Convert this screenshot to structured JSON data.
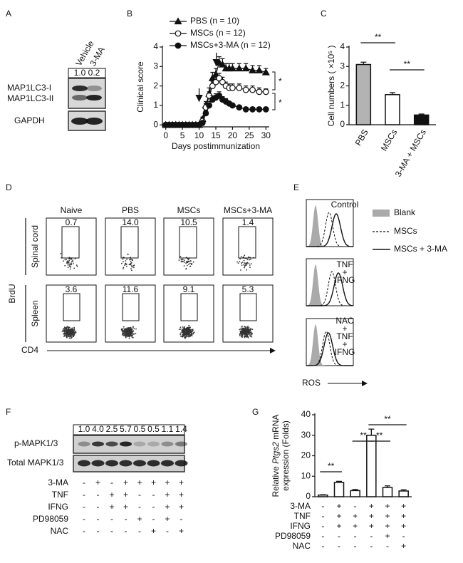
{
  "panel_letters": [
    "A",
    "B",
    "C",
    "D",
    "E",
    "F",
    "G"
  ],
  "blot_A": {
    "lanes": [
      "Vehicle",
      "3-MA"
    ],
    "ratios": [
      "1.0",
      "0.2"
    ],
    "bands": [
      "MAP1LC3-I",
      "MAP1LC3-II"
    ],
    "loading": "GAPDH"
  },
  "flow_D": {
    "columns": [
      "Naive",
      "PBS",
      "MSCs",
      "MSCs+3-MA"
    ],
    "rows": [
      {
        "label": "Spinal cord",
        "percents": [
          "0.7",
          "14.0",
          "10.5",
          "1.4"
        ]
      },
      {
        "label": "Spleen",
        "percents": [
          "3.6",
          "11.6",
          "9.1",
          "5.3"
        ]
      }
    ],
    "y_marker": "BrdU",
    "x_marker": "CD4"
  },
  "histogram_E": {
    "legend": [
      "Blank",
      "MSCs",
      "MSCs + 3-MA"
    ],
    "conditions": [
      [
        "Control"
      ],
      [
        "TNF",
        "+",
        "IFNG"
      ],
      [
        "NAC",
        "+",
        "TNF",
        "+",
        "IFNG"
      ]
    ],
    "x_marker": "ROS"
  },
  "blot_F": {
    "ratios": [
      "1.0",
      "4.0",
      "2.5",
      "5.7",
      "0.5",
      "0.5",
      "1.1",
      "1.4"
    ],
    "bands": [
      "p-MAPK1/3",
      "Total MAPK1/3"
    ],
    "treatments": [
      {
        "name": "3-MA",
        "signs": [
          "-",
          "+",
          "-",
          "+",
          "+",
          "+",
          "+",
          "+"
        ]
      },
      {
        "name": "TNF",
        "signs": [
          "-",
          "-",
          "+",
          "+",
          "-",
          "-",
          "+",
          "+"
        ]
      },
      {
        "name": "IFNG",
        "signs": [
          "-",
          "-",
          "+",
          "+",
          "-",
          "-",
          "+",
          "+"
        ]
      },
      {
        "name": "PD98059",
        "signs": [
          "-",
          "-",
          "-",
          "-",
          "+",
          "-",
          "+",
          "-"
        ]
      },
      {
        "name": "NAC",
        "signs": [
          "-",
          "-",
          "-",
          "-",
          "-",
          "+",
          "-",
          "+"
        ]
      }
    ]
  },
  "chart_data": [
    {
      "type": "line",
      "xlabel": "Days postimmunization",
      "ylabel": "Clinical score",
      "x": [
        0,
        1,
        2,
        3,
        4,
        5,
        6,
        7,
        8,
        9,
        10,
        11,
        12,
        13,
        14,
        15,
        16,
        17,
        18,
        19,
        20,
        22,
        24,
        26,
        28,
        30
      ],
      "series": [
        {
          "name": "PBS (n = 10)",
          "color": "#111111",
          "marker": "triangle",
          "values": [
            0,
            0,
            0,
            0,
            0,
            0,
            0,
            0,
            0,
            0,
            0,
            0.3,
            1.0,
            1.6,
            2.4,
            2.6,
            3.2,
            3.1,
            2.9,
            2.9,
            2.9,
            2.9,
            2.9,
            2.8,
            2.8,
            2.7
          ],
          "errors": [
            0,
            0,
            0,
            0,
            0,
            0,
            0,
            0,
            0,
            0,
            0,
            0.1,
            0.2,
            0.3,
            0.3,
            0.3,
            0.3,
            0.3,
            0.25,
            0.25,
            0.25,
            0.25,
            0.25,
            0.25,
            0.25,
            0.2
          ]
        },
        {
          "name": "MSCs (n = 12)",
          "color": "#111111",
          "marker": "open-circle",
          "values": [
            0,
            0,
            0,
            0,
            0,
            0,
            0,
            0,
            0,
            0,
            0,
            0.2,
            0.9,
            1.5,
            2.0,
            2.2,
            2.4,
            2.2,
            2.0,
            1.9,
            1.9,
            1.9,
            1.8,
            1.8,
            1.7,
            1.7
          ],
          "errors": [
            0,
            0,
            0,
            0,
            0,
            0,
            0,
            0,
            0,
            0,
            0,
            0.1,
            0.2,
            0.2,
            0.25,
            0.25,
            0.25,
            0.25,
            0.2,
            0.2,
            0.2,
            0.2,
            0.2,
            0.2,
            0.2,
            0.15
          ]
        },
        {
          "name": "MSCs+3-MA (n = 12)",
          "color": "#111111",
          "marker": "circle",
          "values": [
            0,
            0,
            0,
            0,
            0,
            0,
            0,
            0,
            0,
            0,
            0,
            0.1,
            0.6,
            1.0,
            1.3,
            1.4,
            1.5,
            1.3,
            1.2,
            1.1,
            1.0,
            0.9,
            0.8,
            0.8,
            0.8,
            0.8
          ],
          "errors": [
            0,
            0,
            0,
            0,
            0,
            0,
            0,
            0,
            0,
            0,
            0,
            0.05,
            0.15,
            0.2,
            0.2,
            0.2,
            0.2,
            0.15,
            0.15,
            0.1,
            0.1,
            0.1,
            0.1,
            0.1,
            0.1,
            0.08
          ]
        }
      ],
      "xlim": [
        -1,
        31
      ],
      "xticks": [
        0,
        5,
        10,
        15,
        20,
        25,
        30
      ],
      "ylim": [
        -0.1,
        4
      ],
      "yticks": [
        0,
        1,
        2,
        3,
        4
      ],
      "annotations": [
        "*",
        "*"
      ]
    },
    {
      "type": "bar",
      "ylabel": "Cell numbers ( ×10⁵ )",
      "categories": [
        "PBS",
        "MSCs",
        "3-MA + MSCs"
      ],
      "values": [
        3.1,
        1.55,
        0.5
      ],
      "errors": [
        0.12,
        0.1,
        0.05
      ],
      "colors": [
        "#b3b3b3",
        "#ffffff",
        "#111111"
      ],
      "ylim": [
        0,
        4
      ],
      "yticks": [
        0,
        1,
        2,
        3,
        4
      ],
      "annotations": [
        "**",
        "**"
      ]
    },
    {
      "type": "bar",
      "ylabel": {
        "pre": "Relative ",
        "gene": "Ptgs2",
        "post": " mRNA",
        "line2": "expression (Folds)"
      },
      "values": [
        0.8,
        7,
        3,
        30,
        4.5,
        2.8
      ],
      "errors": [
        0.2,
        0.5,
        0.5,
        3,
        0.8,
        0.6
      ],
      "colors": [
        "#ffffff",
        "#ffffff",
        "#ffffff",
        "#ffffff",
        "#ffffff",
        "#ffffff"
      ],
      "ylim": [
        0,
        40
      ],
      "yticks": [
        0,
        10,
        20,
        30,
        40
      ],
      "annotations": [
        "**",
        "**",
        "**",
        "**"
      ],
      "treatments": [
        {
          "name": "3-MA",
          "signs": [
            "-",
            "+",
            "-",
            "+",
            "+",
            "+"
          ]
        },
        {
          "name": "TNF",
          "signs": [
            "-",
            "+",
            "+",
            "+",
            "+",
            "+"
          ]
        },
        {
          "name": "IFNG",
          "signs": [
            "-",
            "+",
            "+",
            "+",
            "+",
            "+"
          ]
        },
        {
          "name": "PD98059",
          "signs": [
            "-",
            "-",
            "-",
            "-",
            "+",
            "-"
          ]
        },
        {
          "name": "NAC",
          "signs": [
            "-",
            "-",
            "-",
            "-",
            "-",
            "+"
          ]
        }
      ]
    }
  ]
}
